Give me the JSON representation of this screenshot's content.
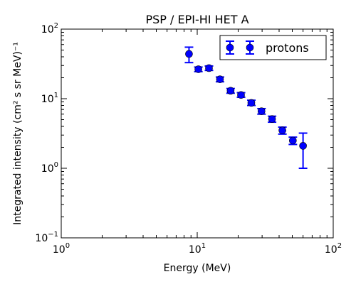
{
  "chart_data": {
    "type": "scatter",
    "title": "PSP / EPI-HI HET A",
    "xlabel": "Energy (MeV)",
    "ylabel": "Integrated intensity (cm² s sr MeV)⁻¹",
    "xscale": "log",
    "yscale": "log",
    "xlim": [
      1,
      100
    ],
    "ylim": [
      0.1,
      100
    ],
    "x_ticks": [
      {
        "base": "10",
        "exp": "0"
      },
      {
        "base": "10",
        "exp": "1"
      },
      {
        "base": "10",
        "exp": "2"
      }
    ],
    "y_ticks": [
      {
        "base": "10",
        "exp": "−1"
      },
      {
        "base": "10",
        "exp": "0"
      },
      {
        "base": "10",
        "exp": "1"
      },
      {
        "base": "10",
        "exp": "2"
      }
    ],
    "grid": false,
    "legend_position": "top-right",
    "series": [
      {
        "name": "protons",
        "color": "#0000ff",
        "marker": "circle",
        "errorbars": true,
        "points": [
          {
            "x": 8.7,
            "y": 44,
            "ylo": 33,
            "yhi": 55
          },
          {
            "x": 10.2,
            "y": 26.5,
            "ylo": 24.5,
            "yhi": 28.5
          },
          {
            "x": 12.2,
            "y": 27.5,
            "ylo": 25.5,
            "yhi": 29.5
          },
          {
            "x": 14.7,
            "y": 19,
            "ylo": 17.5,
            "yhi": 20.5
          },
          {
            "x": 17.6,
            "y": 13,
            "ylo": 12,
            "yhi": 14
          },
          {
            "x": 21,
            "y": 11.3,
            "ylo": 10.5,
            "yhi": 12.2
          },
          {
            "x": 25,
            "y": 8.7,
            "ylo": 8,
            "yhi": 9.5
          },
          {
            "x": 29.7,
            "y": 6.6,
            "ylo": 6,
            "yhi": 7.2
          },
          {
            "x": 35.5,
            "y": 5.1,
            "ylo": 4.6,
            "yhi": 5.6
          },
          {
            "x": 42.3,
            "y": 3.5,
            "ylo": 3.1,
            "yhi": 3.9
          },
          {
            "x": 50.5,
            "y": 2.5,
            "ylo": 2.2,
            "yhi": 2.8
          },
          {
            "x": 60,
            "y": 2.1,
            "ylo": 1.0,
            "yhi": 3.2
          }
        ]
      }
    ]
  }
}
